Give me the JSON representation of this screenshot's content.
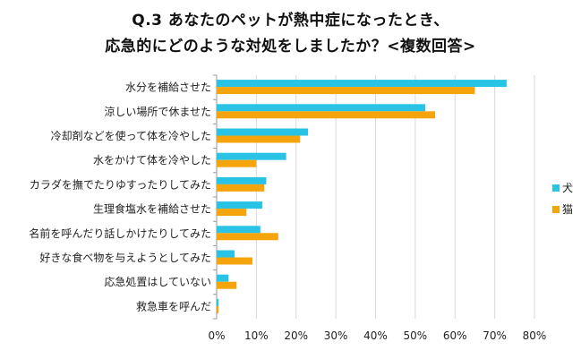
{
  "chart_data": {
    "type": "bar",
    "orientation": "horizontal",
    "title_line1": "Q.3 あなたのペットが熱中症になったとき、",
    "title_line2": "応急的にどのような対処をしましたか？<複数回答>",
    "categories": [
      "水分を補給させた",
      "涼しい場所で休ませた",
      "冷却剤などを使って体を冷やした",
      "水をかけて体を冷やした",
      "カラダを撫でたりゆすったりしてみた",
      "生理食塩水を補給させた",
      "名前を呼んだり話しかけたりしてみた",
      "好きな食べ物を与えようとしてみた",
      "応急処置はしていない",
      "救急車を呼んだ"
    ],
    "series": [
      {
        "name": "犬",
        "color": "#29c3e6",
        "values": [
          73.0,
          52.5,
          23.0,
          17.5,
          12.5,
          11.5,
          11.0,
          4.5,
          3.0,
          0.5
        ]
      },
      {
        "name": "猫",
        "color": "#f5a40c",
        "values": [
          65.0,
          55.0,
          21.0,
          10.0,
          12.0,
          7.5,
          15.5,
          9.0,
          5.0,
          0.5
        ]
      }
    ],
    "xlim": [
      0,
      80
    ],
    "xticks": [
      "0%",
      "10%",
      "20%",
      "30%",
      "40%",
      "50%",
      "60%",
      "70%",
      "80%"
    ],
    "grid": true,
    "legend_position": "right"
  }
}
